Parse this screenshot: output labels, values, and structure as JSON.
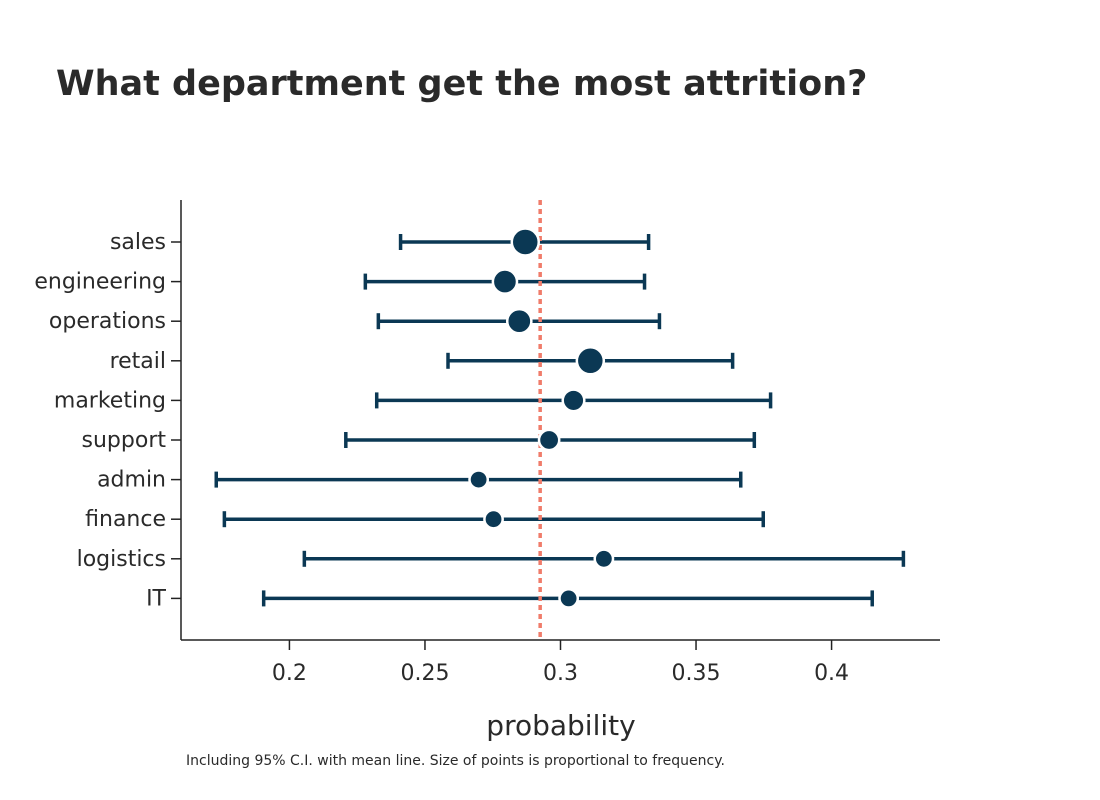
{
  "chart_data": {
    "type": "scatter",
    "title": "What department get the most attrition?",
    "xlabel": "probability",
    "ylabel": "",
    "xlim": [
      0.16,
      0.44
    ],
    "xticks": [
      0.2,
      0.25,
      0.3,
      0.35,
      0.4
    ],
    "xtick_labels": [
      "0.2",
      "0.25",
      "0.3",
      "0.35",
      "0.4"
    ],
    "mean_line": 0.2925,
    "footnote": "Including 95% C.I. with mean line. Size of points is proportional to frequency.",
    "series": [
      {
        "categories": [
          "sales",
          "engineering",
          "operations",
          "retail",
          "marketing",
          "support",
          "admin",
          "finance",
          "logistics",
          "IT"
        ],
        "values": [
          0.287,
          0.2795,
          0.2848,
          0.311,
          0.3048,
          0.2958,
          0.2698,
          0.2753,
          0.316,
          0.303
        ],
        "ci_low": [
          0.241,
          0.228,
          0.2328,
          0.2585,
          0.2322,
          0.2208,
          0.173,
          0.176,
          0.2055,
          0.1905
        ],
        "ci_high": [
          0.3325,
          0.331,
          0.3365,
          0.3635,
          0.3775,
          0.3715,
          0.3665,
          0.3748,
          0.4265,
          0.415
        ],
        "relative_frequency": [
          1.0,
          0.81,
          0.81,
          1.0,
          0.64,
          0.55,
          0.42,
          0.42,
          0.42,
          0.42
        ]
      }
    ],
    "colors": {
      "points": "#0b3854",
      "mean_line": "#f07c6a",
      "axis": "#222222"
    }
  }
}
